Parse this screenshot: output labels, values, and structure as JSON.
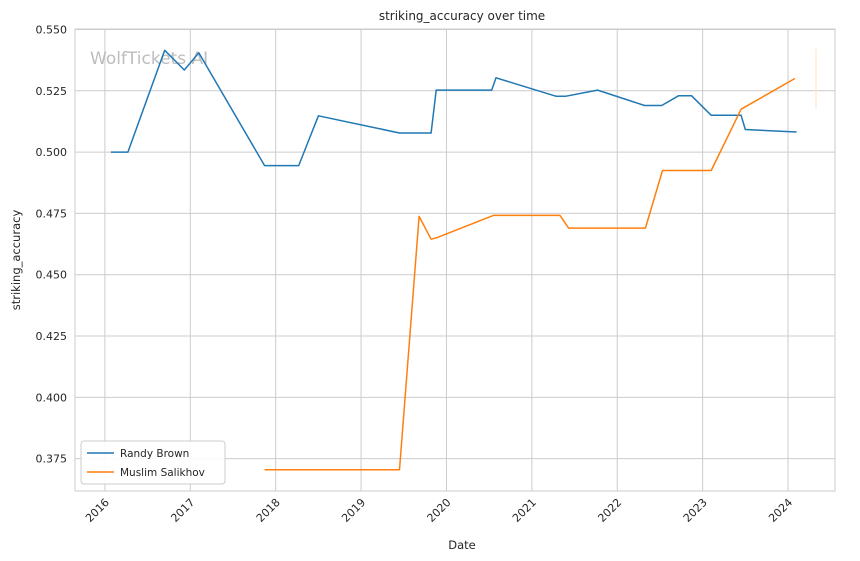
{
  "chart_data": {
    "type": "line",
    "title": "striking_accuracy over time",
    "xlabel": "Date",
    "ylabel": "striking_accuracy",
    "watermark": "WolfTickets AI",
    "xlim": [
      2015.65,
      2024.55
    ],
    "ylim": [
      0.3618,
      0.5502
    ],
    "x_ticks": [
      2016,
      2017,
      2018,
      2019,
      2020,
      2021,
      2022,
      2023,
      2024
    ],
    "y_ticks": [
      0.375,
      0.4,
      0.425,
      0.45,
      0.475,
      0.5,
      0.525,
      0.55
    ],
    "y_tick_labels": [
      "0.375",
      "0.400",
      "0.425",
      "0.450",
      "0.475",
      "0.500",
      "0.525",
      "0.550"
    ],
    "grid": true,
    "legend_position": "lower-left",
    "series": [
      {
        "name": "Randy Brown",
        "color": "#1f77b4",
        "points": [
          [
            2016.07,
            0.5
          ],
          [
            2016.27,
            0.5
          ],
          [
            2016.7,
            0.5415
          ],
          [
            2016.93,
            0.5335
          ],
          [
            2017.1,
            0.5405
          ],
          [
            2017.87,
            0.4945
          ],
          [
            2018.27,
            0.4945
          ],
          [
            2018.5,
            0.5148
          ],
          [
            2019.45,
            0.5078
          ],
          [
            2019.82,
            0.5078
          ],
          [
            2019.88,
            0.5253
          ],
          [
            2020.53,
            0.5253
          ],
          [
            2020.58,
            0.5303
          ],
          [
            2021.28,
            0.5228
          ],
          [
            2021.4,
            0.5228
          ],
          [
            2021.77,
            0.5253
          ],
          [
            2022.32,
            0.519
          ],
          [
            2022.52,
            0.519
          ],
          [
            2022.72,
            0.523
          ],
          [
            2022.87,
            0.523
          ],
          [
            2023.1,
            0.515
          ],
          [
            2023.45,
            0.515
          ],
          [
            2023.5,
            0.5092
          ],
          [
            2024.1,
            0.5082
          ]
        ]
      },
      {
        "name": "Muslim Salikhov",
        "color": "#ff7f0e",
        "points": [
          [
            2017.87,
            0.3705
          ],
          [
            2019.45,
            0.3705
          ],
          [
            2019.68,
            0.4738
          ],
          [
            2019.82,
            0.4645
          ],
          [
            2019.88,
            0.465
          ],
          [
            2020.55,
            0.4742
          ],
          [
            2021.33,
            0.4742
          ],
          [
            2021.43,
            0.469
          ],
          [
            2022.33,
            0.469
          ],
          [
            2022.53,
            0.4925
          ],
          [
            2023.1,
            0.4925
          ],
          [
            2023.45,
            0.5175
          ],
          [
            2024.08,
            0.53
          ]
        ]
      }
    ]
  }
}
